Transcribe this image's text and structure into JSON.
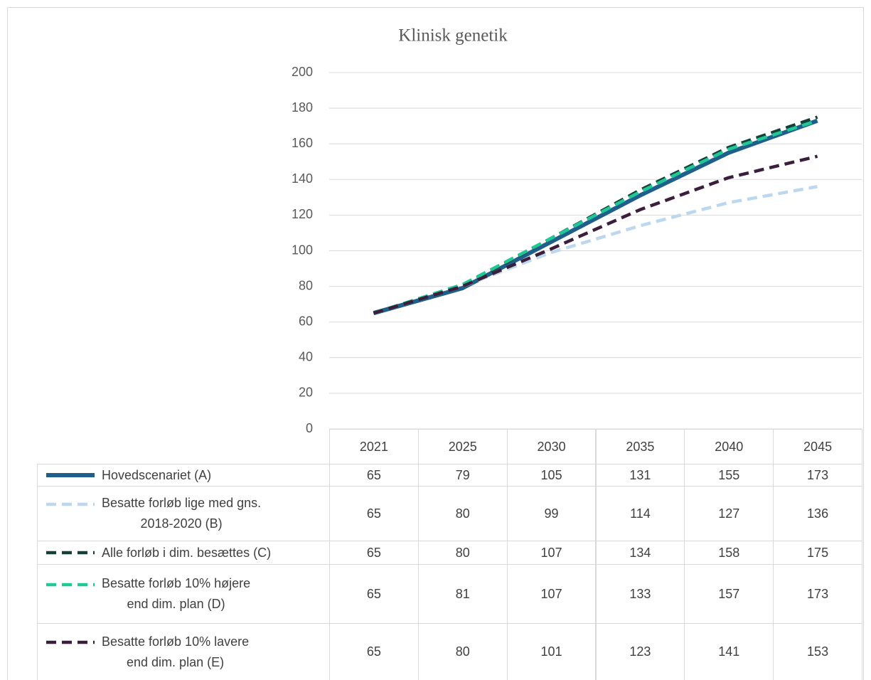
{
  "chart_data": {
    "type": "line",
    "title": "Klinisk genetik",
    "categories": [
      "2021",
      "2025",
      "2030",
      "2035",
      "2040",
      "2045"
    ],
    "series": [
      {
        "name": "Hovedscenariet (A)",
        "color": "#1f5f8b",
        "values": [
          65,
          79,
          105,
          131,
          155,
          173
        ]
      },
      {
        "name": "Besatte forløb lige med gns.\n2018-2020 (B)",
        "color": "#bdd7ee",
        "values": [
          65,
          80,
          99,
          114,
          127,
          136
        ]
      },
      {
        "name": "Alle forløb i dim. besættes (C)",
        "color": "#153f38",
        "values": [
          65,
          80,
          107,
          134,
          158,
          175
        ]
      },
      {
        "name": "Besatte forløb 10% højere\nend dim. plan (D)",
        "color": "#1fc896",
        "values": [
          65,
          81,
          107,
          133,
          157,
          173
        ]
      },
      {
        "name": "Besatte forløb 10% lavere\nend dim. plan (E)",
        "color": "#3b1e3c",
        "values": [
          65,
          80,
          101,
          123,
          141,
          153
        ]
      }
    ],
    "ylim": [
      0,
      200
    ],
    "yticks": [
      0,
      20,
      40,
      60,
      80,
      100,
      120,
      140,
      160,
      180,
      200
    ],
    "grid": true
  }
}
